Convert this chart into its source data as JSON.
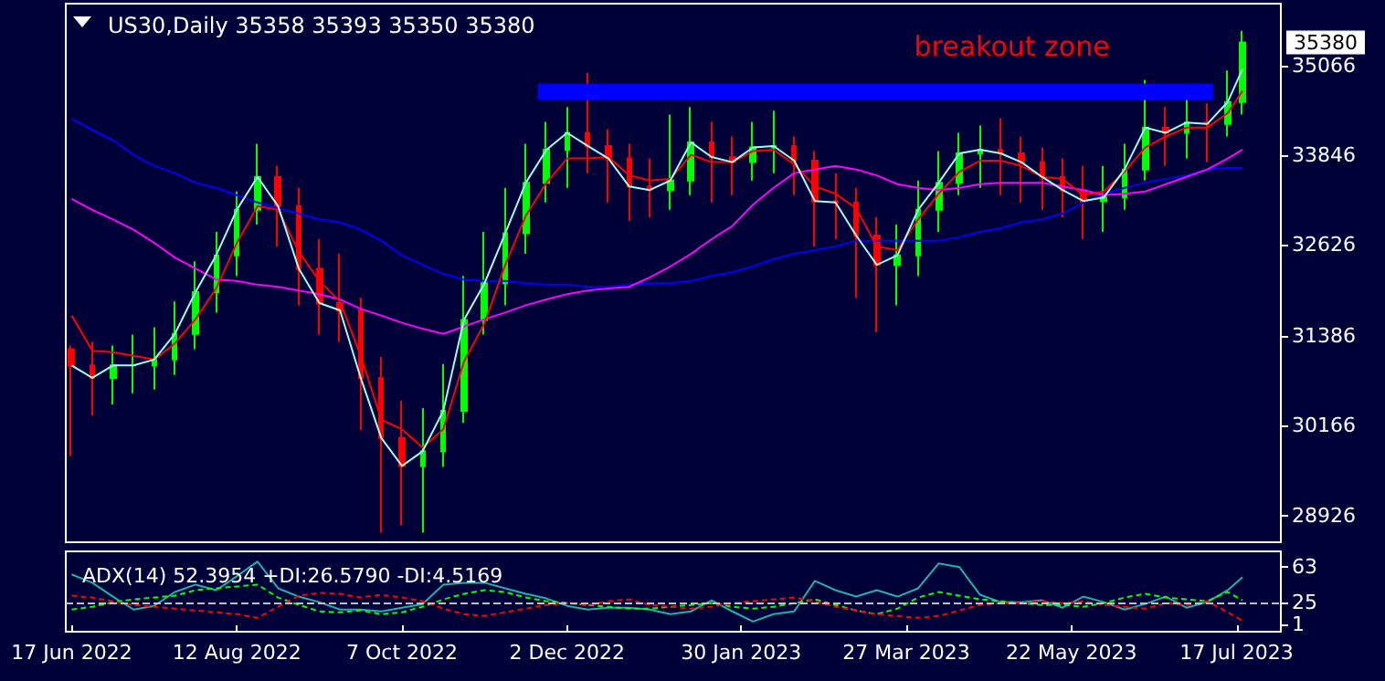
{
  "chart_data": [
    {
      "type": "candlestick",
      "title": "US30,Daily 35358 35393 35350 35380",
      "tick_labels": "y",
      "xlim": [
        "2022-06-15",
        "2023-08-01"
      ],
      "ylim": [
        28570,
        35910
      ],
      "yticks": [
        28926,
        30166,
        31386,
        32626,
        33846,
        35066
      ],
      "x": [
        "2022-06-17",
        "2022-06-24",
        "2022-07-01",
        "2022-07-08",
        "2022-07-15",
        "2022-07-22",
        "2022-07-29",
        "2022-08-05",
        "2022-08-12",
        "2022-08-19",
        "2022-08-26",
        "2022-09-02",
        "2022-09-09",
        "2022-09-16",
        "2022-09-23",
        "2022-09-30",
        "2022-10-07",
        "2022-10-14",
        "2022-10-21",
        "2022-10-28",
        "2022-11-04",
        "2022-11-11",
        "2022-11-18",
        "2022-11-25",
        "2022-12-02",
        "2022-12-09",
        "2022-12-16",
        "2022-12-23",
        "2022-12-30",
        "2023-01-06",
        "2023-01-13",
        "2023-01-20",
        "2023-01-27",
        "2023-02-03",
        "2023-02-10",
        "2023-02-17",
        "2023-02-24",
        "2023-03-03",
        "2023-03-10",
        "2023-03-17",
        "2023-03-24",
        "2023-03-31",
        "2023-04-07",
        "2023-04-14",
        "2023-04-21",
        "2023-04-28",
        "2023-05-05",
        "2023-05-12",
        "2023-05-19",
        "2023-05-26",
        "2023-06-02",
        "2023-06-09",
        "2023-06-16",
        "2023-06-23",
        "2023-06-30",
        "2023-07-07",
        "2023-07-14",
        "2023-07-19"
      ],
      "ohlc": [
        [
          31200,
          31250,
          29750,
          30980
        ],
        [
          30980,
          31300,
          30300,
          30810
        ],
        [
          30810,
          31250,
          30450,
          30980
        ],
        [
          30980,
          31400,
          30600,
          30980
        ],
        [
          30980,
          31500,
          30650,
          31060
        ],
        [
          31060,
          31850,
          30850,
          31410
        ],
        [
          31410,
          32400,
          31200,
          31980
        ],
        [
          31980,
          32800,
          31700,
          32480
        ],
        [
          32480,
          33350,
          32200,
          33100
        ],
        [
          33100,
          34000,
          32900,
          33550
        ],
        [
          33550,
          33700,
          32600,
          33150
        ],
        [
          33150,
          33400,
          31800,
          32300
        ],
        [
          32300,
          32700,
          31400,
          31830
        ],
        [
          31830,
          32500,
          31300,
          31730
        ],
        [
          31730,
          31900,
          30100,
          30810
        ],
        [
          30810,
          31100,
          28700,
          29990
        ],
        [
          29990,
          30500,
          28800,
          29610
        ],
        [
          29610,
          30400,
          28700,
          29810
        ],
        [
          29810,
          31000,
          29600,
          30360
        ],
        [
          30360,
          32200,
          30200,
          31600
        ],
        [
          31600,
          32800,
          31400,
          32100
        ],
        [
          32100,
          33400,
          31800,
          32780
        ],
        [
          32780,
          34000,
          32500,
          33470
        ],
        [
          33470,
          34300,
          33200,
          33920
        ],
        [
          33920,
          34500,
          33400,
          34150
        ],
        [
          34150,
          34970,
          33600,
          33970
        ],
        [
          33970,
          34200,
          33200,
          33800
        ],
        [
          33800,
          34000,
          32950,
          33420
        ],
        [
          33420,
          33800,
          33000,
          33370
        ],
        [
          33370,
          34400,
          33100,
          33500
        ],
        [
          33500,
          34500,
          33300,
          34020
        ],
        [
          34020,
          34300,
          33200,
          33820
        ],
        [
          33820,
          34100,
          33300,
          33750
        ],
        [
          33750,
          34300,
          33500,
          33950
        ],
        [
          33950,
          34450,
          33600,
          33970
        ],
        [
          33970,
          34100,
          33300,
          33770
        ],
        [
          33770,
          33900,
          32600,
          33220
        ],
        [
          33220,
          33600,
          32700,
          33200
        ],
        [
          33200,
          33400,
          31900,
          32750
        ],
        [
          32750,
          33000,
          31430,
          32350
        ],
        [
          32350,
          32900,
          31800,
          32480
        ],
        [
          32480,
          33500,
          32200,
          33100
        ],
        [
          33100,
          33900,
          32800,
          33470
        ],
        [
          33470,
          34150,
          33300,
          33870
        ],
        [
          33870,
          34250,
          33400,
          33920
        ],
        [
          33920,
          34350,
          33300,
          33870
        ],
        [
          33870,
          34100,
          33200,
          33750
        ],
        [
          33750,
          33950,
          33100,
          33550
        ],
        [
          33550,
          33800,
          33000,
          33370
        ],
        [
          33370,
          33700,
          32700,
          33220
        ],
        [
          33220,
          33700,
          32800,
          33270
        ],
        [
          33270,
          34000,
          33100,
          33650
        ],
        [
          33650,
          34870,
          33500,
          34220
        ],
        [
          34220,
          34500,
          33700,
          34150
        ],
        [
          34150,
          34600,
          33800,
          34290
        ],
        [
          34290,
          34550,
          33750,
          34270
        ],
        [
          34270,
          35000,
          34100,
          34570
        ],
        [
          34570,
          35540,
          34400,
          35380
        ]
      ],
      "colors": [
        "#ff0000",
        "#ff0000",
        "#00ff00",
        "#00ff00",
        "#00ff00",
        "#00ff00",
        "#00ff00",
        "#00ff00",
        "#00ff00",
        "#00ff00",
        "#ff0000",
        "#ff0000",
        "#ff0000",
        "#ff0000",
        "#ff0000",
        "#ff0000",
        "#ff0000",
        "#00ff00",
        "#00ff00",
        "#00ff00",
        "#00ff00",
        "#00ff00",
        "#00ff00",
        "#00ff00",
        "#00ff00",
        "#ff0000",
        "#ff0000",
        "#ff0000",
        "#ff0000",
        "#00ff00",
        "#00ff00",
        "#ff0000",
        "#ff0000",
        "#00ff00",
        "#00ff00",
        "#ff0000",
        "#ff0000",
        "#ff0000",
        "#ff0000",
        "#ff0000",
        "#00ff00",
        "#00ff00",
        "#00ff00",
        "#00ff00",
        "#00ff00",
        "#ff0000",
        "#ff0000",
        "#ff0000",
        "#ff0000",
        "#ff0000",
        "#00ff00",
        "#00ff00",
        "#00ff00",
        "#ff0000",
        "#00ff00",
        "#ff0000",
        "#00ff00",
        "#00ff00"
      ],
      "series": [
        {
          "type": "line",
          "color": "#0000ff",
          "x": [
            "2022-11-22",
            "2023-07-09"
          ],
          "values": [
            34710,
            34710
          ]
        },
        {
          "type": "line",
          "color": "#0000ff",
          "values": [
            34340,
            34190,
            34050,
            33850,
            33700,
            33600,
            33470,
            33400,
            33300,
            33200,
            33120,
            33050,
            32970,
            32930,
            32830,
            32680,
            32480,
            32350,
            32230,
            32150,
            32130,
            32130,
            32100,
            32080,
            32080,
            32050,
            32050,
            32080,
            32100,
            32100,
            32130,
            32200,
            32250,
            32330,
            32430,
            32500,
            32550,
            32600,
            32680,
            32680,
            32680,
            32680,
            32680,
            32730,
            32800,
            32850,
            32930,
            32970,
            33050,
            33200,
            33320,
            33400,
            33470,
            33520,
            33570,
            33650,
            33670,
            33670
          ]
        },
        {
          "type": "line",
          "color": "#ff00ff",
          "values": [
            33250,
            33100,
            32970,
            32830,
            32650,
            32450,
            32300,
            32150,
            32130,
            32080,
            32050,
            32000,
            31950,
            31880,
            31750,
            31660,
            31560,
            31480,
            31410,
            31510,
            31610,
            31700,
            31800,
            31880,
            31950,
            32000,
            32030,
            32050,
            32180,
            32330,
            32500,
            32700,
            32880,
            33170,
            33400,
            33600,
            33650,
            33700,
            33650,
            33570,
            33450,
            33400,
            33370,
            33400,
            33450,
            33470,
            33470,
            33470,
            33420,
            33370,
            33300,
            33320,
            33350,
            33450,
            33550,
            33650,
            33800,
            33920
          ]
        },
        {
          "type": "line",
          "color": "#ff0000",
          "values": [
            31660,
            31180,
            31160,
            31110,
            31060,
            31280,
            31610,
            32030,
            32650,
            33150,
            33100,
            32530,
            32130,
            31850,
            31110,
            30240,
            30110,
            29860,
            30110,
            31030,
            31560,
            32350,
            33020,
            33470,
            33800,
            33800,
            33820,
            33570,
            33500,
            33520,
            33850,
            33750,
            33750,
            33900,
            33920,
            33720,
            33420,
            33320,
            33120,
            32600,
            32550,
            32970,
            33320,
            33620,
            33770,
            33770,
            33700,
            33550,
            33520,
            33300,
            33350,
            33620,
            33950,
            34100,
            34220,
            34220,
            34420,
            34720
          ]
        },
        {
          "type": "line",
          "color": "#a0fff0",
          "values": [
            30980,
            30810,
            30980,
            30980,
            31060,
            31410,
            31980,
            32480,
            33100,
            33550,
            33150,
            32300,
            31830,
            31730,
            30810,
            29990,
            29610,
            29810,
            30360,
            31600,
            32100,
            32780,
            33470,
            33920,
            34150,
            33970,
            33800,
            33420,
            33370,
            33500,
            34020,
            33820,
            33750,
            33950,
            33970,
            33770,
            33220,
            33200,
            32750,
            32350,
            32480,
            33100,
            33470,
            33870,
            33920,
            33870,
            33750,
            33550,
            33370,
            33220,
            33270,
            33650,
            34220,
            34150,
            34290,
            34270,
            34570,
            35020
          ]
        }
      ],
      "annotations": [
        "breakout zone",
        {
          "text": "35380",
          "y": 35380
        }
      ]
    },
    {
      "type": "line",
      "title": "ADX(14) 52.3954 +DI:26.5790 -DI:4.5169",
      "xlim": [
        "2022-06-15",
        "2023-08-01"
      ],
      "xticks": [
        {
          "value": "2022-06-17",
          "label": "17 Jun 2022"
        },
        {
          "value": "2022-08-12",
          "label": "12 Aug 2022"
        },
        {
          "value": "2022-10-07",
          "label": "7 Oct 2022"
        },
        {
          "value": "2022-12-02",
          "label": "2 Dec 2022"
        },
        {
          "value": "2023-01-30",
          "label": "30 Jan 2023"
        },
        {
          "value": "2023-03-27",
          "label": "27 Mar 2023"
        },
        {
          "value": "2023-05-22",
          "label": "22 May 2023"
        },
        {
          "value": "2023-07-17",
          "label": "17 Jul 2023"
        }
      ],
      "ylim": [
        -7,
        80
      ],
      "yticks": [
        1,
        25,
        63
      ],
      "x": [
        "2022-06-17",
        "2022-06-24",
        "2022-07-01",
        "2022-07-08",
        "2022-07-15",
        "2022-07-22",
        "2022-07-29",
        "2022-08-05",
        "2022-08-12",
        "2022-08-19",
        "2022-08-26",
        "2022-09-02",
        "2022-09-09",
        "2022-09-16",
        "2022-09-23",
        "2022-09-30",
        "2022-10-07",
        "2022-10-14",
        "2022-10-21",
        "2022-10-28",
        "2022-11-04",
        "2022-11-11",
        "2022-11-18",
        "2022-11-25",
        "2022-12-02",
        "2022-12-09",
        "2022-12-16",
        "2022-12-23",
        "2022-12-30",
        "2023-01-06",
        "2023-01-13",
        "2023-01-20",
        "2023-01-27",
        "2023-02-03",
        "2023-02-10",
        "2023-02-17",
        "2023-02-24",
        "2023-03-03",
        "2023-03-10",
        "2023-03-17",
        "2023-03-24",
        "2023-03-31",
        "2023-04-07",
        "2023-04-14",
        "2023-04-21",
        "2023-04-28",
        "2023-05-05",
        "2023-05-12",
        "2023-05-19",
        "2023-05-26",
        "2023-06-02",
        "2023-06-09",
        "2023-06-16",
        "2023-06-23",
        "2023-06-30",
        "2023-07-07",
        "2023-07-14",
        "2023-07-19"
      ],
      "series": [
        {
          "color": "#20b2aa",
          "values": [
            55,
            46,
            31,
            17,
            21,
            36,
            44,
            38,
            53,
            69,
            40,
            31,
            25,
            17,
            17,
            15,
            19,
            23,
            44,
            46,
            46,
            40,
            34,
            29,
            21,
            17,
            19,
            19,
            17,
            12,
            15,
            27,
            15,
            4,
            12,
            15,
            48,
            38,
            31,
            38,
            31,
            40,
            67,
            63,
            33,
            25,
            25,
            27,
            19,
            31,
            25,
            17,
            23,
            31,
            19,
            25,
            38,
            52
          ]
        },
        {
          "color": "#00ff00",
          "line_style": "dashed",
          "values": [
            17,
            20,
            25,
            28,
            30,
            32,
            38,
            40,
            42,
            44,
            30,
            22,
            15,
            14,
            16,
            12,
            14,
            20,
            28,
            34,
            38,
            36,
            30,
            26,
            24,
            22,
            20,
            18,
            18,
            20,
            22,
            24,
            20,
            18,
            20,
            24,
            28,
            22,
            16,
            12,
            18,
            30,
            36,
            32,
            28,
            26,
            24,
            22,
            22,
            20,
            24,
            30,
            34,
            30,
            28,
            26,
            36,
            27
          ]
        },
        {
          "color": "#ff0000",
          "line_style": "dashed",
          "values": [
            32,
            30,
            26,
            22,
            20,
            18,
            16,
            14,
            12,
            8,
            20,
            32,
            35,
            34,
            30,
            33,
            30,
            26,
            18,
            12,
            10,
            14,
            18,
            22,
            24,
            22,
            26,
            28,
            22,
            20,
            18,
            20,
            24,
            26,
            28,
            30,
            26,
            20,
            16,
            12,
            10,
            8,
            10,
            16,
            22,
            24,
            24,
            26,
            24,
            26,
            22,
            20,
            18,
            24,
            22,
            26,
            14,
            5
          ]
        }
      ],
      "ref_lines": [
        {
          "axis": "y",
          "value": 25,
          "color": "#c0c0c0",
          "line_style": "dashed"
        }
      ]
    }
  ]
}
